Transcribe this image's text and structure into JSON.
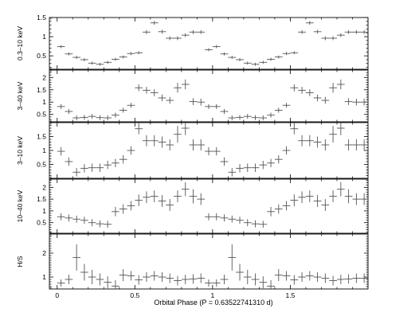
{
  "chart_data": [
    {
      "type": "scatter",
      "ylabel": "0.3–10 keV",
      "ylim": [
        0.15,
        1.5
      ],
      "yticks": [
        0.5,
        1,
        1.5
      ],
      "ytick_labels": [
        "0.5",
        "1",
        "1.5"
      ],
      "ytick_minor": [
        0.2,
        0.3,
        0.4,
        0.6,
        0.7,
        0.8,
        0.9,
        1.1,
        1.2,
        1.3,
        1.4
      ],
      "series": [
        {
          "x": [
            0.025,
            0.075,
            0.125,
            0.175,
            0.225,
            0.275,
            0.325,
            0.375,
            0.425,
            0.475,
            0.525,
            0.575,
            0.625,
            0.675,
            0.725,
            0.775,
            0.825,
            0.875,
            0.925,
            0.975,
            1.025,
            1.075,
            1.125,
            1.175,
            1.225,
            1.275,
            1.325,
            1.375,
            1.425,
            1.475,
            1.525,
            1.575,
            1.625,
            1.675,
            1.725,
            1.775,
            1.825,
            1.875,
            1.925,
            1.975
          ],
          "y": [
            0.74,
            0.55,
            0.46,
            0.4,
            0.31,
            0.28,
            0.33,
            0.41,
            0.47,
            0.56,
            0.58,
            1.12,
            1.36,
            1.13,
            0.96,
            0.96,
            1.04,
            1.12,
            1.12,
            0.66,
            0.74,
            0.55,
            0.46,
            0.4,
            0.31,
            0.28,
            0.33,
            0.41,
            0.47,
            0.56,
            0.58,
            1.12,
            1.36,
            1.13,
            0.96,
            0.96,
            1.04,
            1.12,
            1.12,
            1.12
          ],
          "yerr": [
            0.04,
            0.04,
            0.04,
            0.04,
            0.04,
            0.04,
            0.04,
            0.04,
            0.04,
            0.04,
            0.04,
            0.05,
            0.05,
            0.05,
            0.05,
            0.05,
            0.05,
            0.05,
            0.05,
            0.04,
            0.04,
            0.04,
            0.04,
            0.04,
            0.04,
            0.04,
            0.04,
            0.04,
            0.04,
            0.04,
            0.04,
            0.05,
            0.05,
            0.05,
            0.05,
            0.05,
            0.05,
            0.05,
            0.05,
            0.05
          ]
        }
      ]
    },
    {
      "type": "scatter",
      "ylabel": "3–40 keV",
      "ylim": [
        0.2,
        2.3
      ],
      "yticks": [
        0.5,
        1,
        1.5,
        2
      ],
      "ytick_labels": [
        "0.5",
        "1",
        "1.5",
        "2"
      ],
      "ytick_minor": [
        0.3,
        0.4,
        0.6,
        0.7,
        0.8,
        0.9,
        1.1,
        1.2,
        1.3,
        1.4,
        1.6,
        1.7,
        1.8,
        1.9,
        2.1,
        2.2
      ],
      "series": [
        {
          "x": [
            0.025,
            0.075,
            0.125,
            0.175,
            0.225,
            0.275,
            0.325,
            0.375,
            0.425,
            0.475,
            0.525,
            0.575,
            0.625,
            0.675,
            0.725,
            0.775,
            0.825,
            0.875,
            0.925,
            0.975,
            1.025,
            1.075,
            1.125,
            1.175,
            1.225,
            1.275,
            1.325,
            1.375,
            1.425,
            1.475,
            1.525,
            1.575,
            1.625,
            1.675,
            1.725,
            1.775,
            1.825,
            1.875,
            1.925,
            1.975
          ],
          "y": [
            0.82,
            0.62,
            0.36,
            0.38,
            0.42,
            0.37,
            0.36,
            0.47,
            0.67,
            0.87,
            1.58,
            1.48,
            1.38,
            1.17,
            1.07,
            1.58,
            1.72,
            1.02,
            1.0,
            0.82,
            0.82,
            0.62,
            0.36,
            0.38,
            0.42,
            0.37,
            0.36,
            0.47,
            0.67,
            0.87,
            1.58,
            1.48,
            1.38,
            1.17,
            1.07,
            1.58,
            1.72,
            1.02,
            1.0,
            1.0
          ],
          "yerr": [
            0.1,
            0.1,
            0.1,
            0.1,
            0.1,
            0.1,
            0.1,
            0.1,
            0.1,
            0.1,
            0.14,
            0.14,
            0.14,
            0.14,
            0.14,
            0.2,
            0.2,
            0.14,
            0.14,
            0.1,
            0.1,
            0.1,
            0.1,
            0.1,
            0.1,
            0.1,
            0.1,
            0.1,
            0.1,
            0.1,
            0.14,
            0.14,
            0.14,
            0.14,
            0.14,
            0.2,
            0.2,
            0.14,
            0.14,
            0.14
          ]
        }
      ]
    },
    {
      "type": "scatter",
      "ylabel": "3–10 keV",
      "ylim": [
        0.0,
        2.0
      ],
      "yticks": [
        0.5,
        1,
        1.5
      ],
      "ytick_labels": [
        "0.5",
        "1",
        "1.5"
      ],
      "ytick_minor": [
        0.1,
        0.2,
        0.3,
        0.4,
        0.6,
        0.7,
        0.8,
        0.9,
        1.1,
        1.2,
        1.3,
        1.4,
        1.6,
        1.7,
        1.8,
        1.9
      ],
      "series": [
        {
          "x": [
            0.025,
            0.075,
            0.125,
            0.175,
            0.225,
            0.275,
            0.325,
            0.375,
            0.425,
            0.475,
            0.525,
            0.575,
            0.625,
            0.675,
            0.725,
            0.775,
            0.825,
            0.875,
            0.925,
            0.975,
            1.025,
            1.075,
            1.125,
            1.175,
            1.225,
            1.275,
            1.325,
            1.375,
            1.425,
            1.475,
            1.525,
            1.575,
            1.625,
            1.675,
            1.725,
            1.775,
            1.825,
            1.875,
            1.925,
            1.975
          ],
          "y": [
            0.97,
            0.6,
            0.22,
            0.36,
            0.38,
            0.38,
            0.48,
            0.55,
            0.68,
            1.0,
            1.78,
            1.35,
            1.35,
            1.3,
            1.2,
            1.58,
            1.8,
            1.2,
            1.2,
            0.97,
            0.97,
            0.6,
            0.22,
            0.36,
            0.38,
            0.38,
            0.48,
            0.55,
            0.68,
            1.0,
            1.78,
            1.35,
            1.35,
            1.3,
            1.2,
            1.58,
            1.8,
            1.2,
            1.2,
            1.2
          ],
          "yerr": [
            0.15,
            0.15,
            0.15,
            0.15,
            0.15,
            0.15,
            0.15,
            0.15,
            0.15,
            0.15,
            0.2,
            0.2,
            0.2,
            0.2,
            0.2,
            0.3,
            0.25,
            0.2,
            0.2,
            0.15,
            0.15,
            0.15,
            0.15,
            0.15,
            0.15,
            0.15,
            0.15,
            0.15,
            0.15,
            0.15,
            0.2,
            0.2,
            0.2,
            0.2,
            0.2,
            0.3,
            0.25,
            0.2,
            0.2,
            0.2
          ]
        }
      ]
    },
    {
      "type": "scatter",
      "ylabel": "10–40 keV",
      "ylim": [
        0.05,
        2.35
      ],
      "yticks": [
        0.5,
        1,
        1.5,
        2
      ],
      "ytick_labels": [
        "0.5",
        "1",
        "1.5",
        "2"
      ],
      "ytick_minor": [
        0.1,
        0.2,
        0.3,
        0.4,
        0.6,
        0.7,
        0.8,
        0.9,
        1.1,
        1.2,
        1.3,
        1.4,
        1.6,
        1.7,
        1.8,
        1.9,
        2.1,
        2.2,
        2.3
      ],
      "series": [
        {
          "x": [
            0.025,
            0.075,
            0.125,
            0.175,
            0.225,
            0.275,
            0.325,
            0.375,
            0.425,
            0.475,
            0.525,
            0.575,
            0.625,
            0.675,
            0.725,
            0.775,
            0.825,
            0.875,
            0.925,
            0.975,
            1.025,
            1.075,
            1.125,
            1.175,
            1.225,
            1.275,
            1.325,
            1.375,
            1.425,
            1.475,
            1.525,
            1.575,
            1.625,
            1.675,
            1.725,
            1.775,
            1.825,
            1.875,
            1.925,
            1.975
          ],
          "y": [
            0.75,
            0.7,
            0.65,
            0.6,
            0.5,
            0.45,
            0.43,
            0.97,
            1.08,
            1.22,
            1.45,
            1.58,
            1.62,
            1.42,
            1.25,
            1.62,
            1.92,
            1.62,
            1.5,
            0.75,
            0.75,
            0.7,
            0.65,
            0.6,
            0.5,
            0.45,
            0.43,
            0.97,
            1.08,
            1.22,
            1.45,
            1.58,
            1.62,
            1.42,
            1.25,
            1.62,
            1.92,
            1.62,
            1.5,
            1.5
          ],
          "yerr": [
            0.15,
            0.15,
            0.15,
            0.15,
            0.15,
            0.15,
            0.15,
            0.2,
            0.2,
            0.2,
            0.25,
            0.25,
            0.25,
            0.25,
            0.25,
            0.25,
            0.3,
            0.3,
            0.25,
            0.15,
            0.15,
            0.15,
            0.15,
            0.15,
            0.15,
            0.15,
            0.15,
            0.2,
            0.2,
            0.2,
            0.25,
            0.25,
            0.25,
            0.25,
            0.25,
            0.25,
            0.3,
            0.3,
            0.25,
            0.25
          ]
        }
      ]
    },
    {
      "type": "scatter",
      "ylabel": "H/S",
      "ylim": [
        0.5,
        2.8
      ],
      "yticks": [
        1,
        2
      ],
      "ytick_labels": [
        "1",
        "2"
      ],
      "ytick_minor": [
        0.6,
        0.7,
        0.8,
        0.9,
        1.1,
        1.2,
        1.3,
        1.4,
        1.5,
        1.6,
        1.7,
        1.8,
        1.9,
        2.1,
        2.2,
        2.3,
        2.4,
        2.5,
        2.6,
        2.7
      ],
      "series": [
        {
          "x": [
            0.025,
            0.075,
            0.125,
            0.175,
            0.225,
            0.275,
            0.325,
            0.375,
            0.425,
            0.475,
            0.525,
            0.575,
            0.625,
            0.675,
            0.725,
            0.775,
            0.825,
            0.875,
            0.925,
            0.975,
            1.025,
            1.075,
            1.125,
            1.175,
            1.225,
            1.275,
            1.325,
            1.375,
            1.425,
            1.475,
            1.525,
            1.575,
            1.625,
            1.675,
            1.725,
            1.775,
            1.825,
            1.875,
            1.925,
            1.975
          ],
          "y": [
            0.75,
            0.9,
            1.82,
            1.2,
            1.0,
            0.9,
            0.78,
            0.62,
            1.08,
            1.05,
            0.88,
            1.0,
            1.05,
            1.0,
            0.95,
            0.85,
            0.9,
            0.92,
            0.95,
            0.75,
            0.75,
            0.9,
            1.82,
            1.2,
            1.0,
            0.9,
            0.78,
            0.62,
            1.08,
            1.05,
            0.88,
            1.0,
            1.05,
            1.0,
            0.95,
            0.85,
            0.9,
            0.92,
            0.95,
            0.95
          ],
          "yerr": [
            0.15,
            0.2,
            0.55,
            0.35,
            0.3,
            0.25,
            0.25,
            0.25,
            0.25,
            0.2,
            0.2,
            0.2,
            0.2,
            0.2,
            0.2,
            0.2,
            0.2,
            0.2,
            0.2,
            0.15,
            0.15,
            0.2,
            0.55,
            0.35,
            0.3,
            0.25,
            0.25,
            0.25,
            0.25,
            0.2,
            0.2,
            0.2,
            0.2,
            0.2,
            0.2,
            0.2,
            0.2,
            0.2,
            0.2,
            0.2
          ]
        }
      ]
    }
  ],
  "x_axis": {
    "label": "Orbital Phase (P = 0.63522741310 d)",
    "xlim": [
      -0.05,
      2.0
    ],
    "ticks": [
      0,
      0.5,
      1,
      1.5
    ],
    "tick_labels": [
      "0",
      "0.5",
      "1",
      "1.5"
    ],
    "minor_ticks": [
      -0.04,
      0.1,
      0.2,
      0.3,
      0.4,
      0.6,
      0.7,
      0.8,
      0.9,
      1.1,
      1.2,
      1.3,
      1.4,
      1.6,
      1.7,
      1.8,
      1.9
    ],
    "bin_width": 0.05
  },
  "colors": {
    "axes": "#000000",
    "data": "#555555",
    "background": "#ffffff"
  }
}
